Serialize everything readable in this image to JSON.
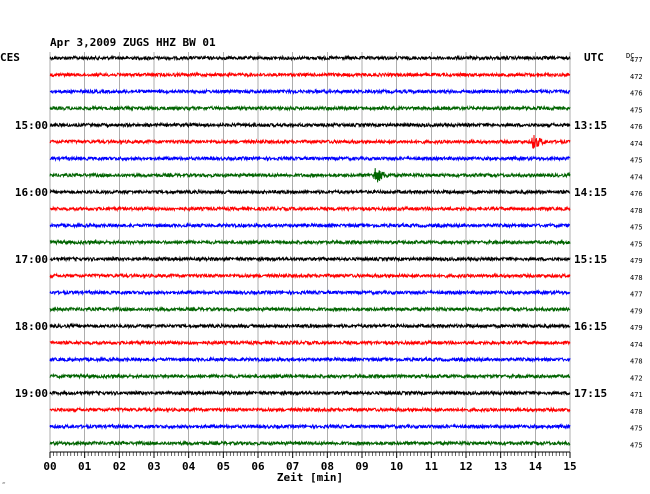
{
  "chart_data": {
    "type": "line",
    "header": "Apr 3,2009   ZUGS HHZ BW 01",
    "left_timezone": "CES",
    "right_timezone": "UTC",
    "dc_label": "DC",
    "xlabel": "Zeit [min]",
    "x_ticks": [
      "00",
      "01",
      "02",
      "03",
      "04",
      "05",
      "06",
      "07",
      "08",
      "09",
      "10",
      "11",
      "12",
      "13",
      "14",
      "15"
    ],
    "xlim": [
      0,
      15
    ],
    "left_hour_labels": [
      {
        "row": 4,
        "label": "15:00"
      },
      {
        "row": 8,
        "label": "16:00"
      },
      {
        "row": 12,
        "label": "17:00"
      },
      {
        "row": 16,
        "label": "18:00"
      },
      {
        "row": 20,
        "label": "19:00"
      }
    ],
    "right_time_labels": [
      {
        "row": 4,
        "label": "13:15"
      },
      {
        "row": 8,
        "label": "14:15"
      },
      {
        "row": 12,
        "label": "15:15"
      },
      {
        "row": 16,
        "label": "16:15"
      },
      {
        "row": 20,
        "label": "17:15"
      }
    ],
    "trace_colors": [
      "#000000",
      "#ff0000",
      "#0000ff",
      "#006400"
    ],
    "dc_values": [
      "477",
      "472",
      "476",
      "475",
      "476",
      "474",
      "475",
      "474",
      "476",
      "478",
      "475",
      "475",
      "479",
      "478",
      "477",
      "479",
      "479",
      "474",
      "478",
      "472",
      "471",
      "478",
      "475",
      "475"
    ],
    "events": [
      {
        "row": 5,
        "minute": 13.95,
        "amplitude": 8
      },
      {
        "row": 7,
        "minute": 9.4,
        "amplitude": 9
      }
    ],
    "footnote": "‴"
  }
}
